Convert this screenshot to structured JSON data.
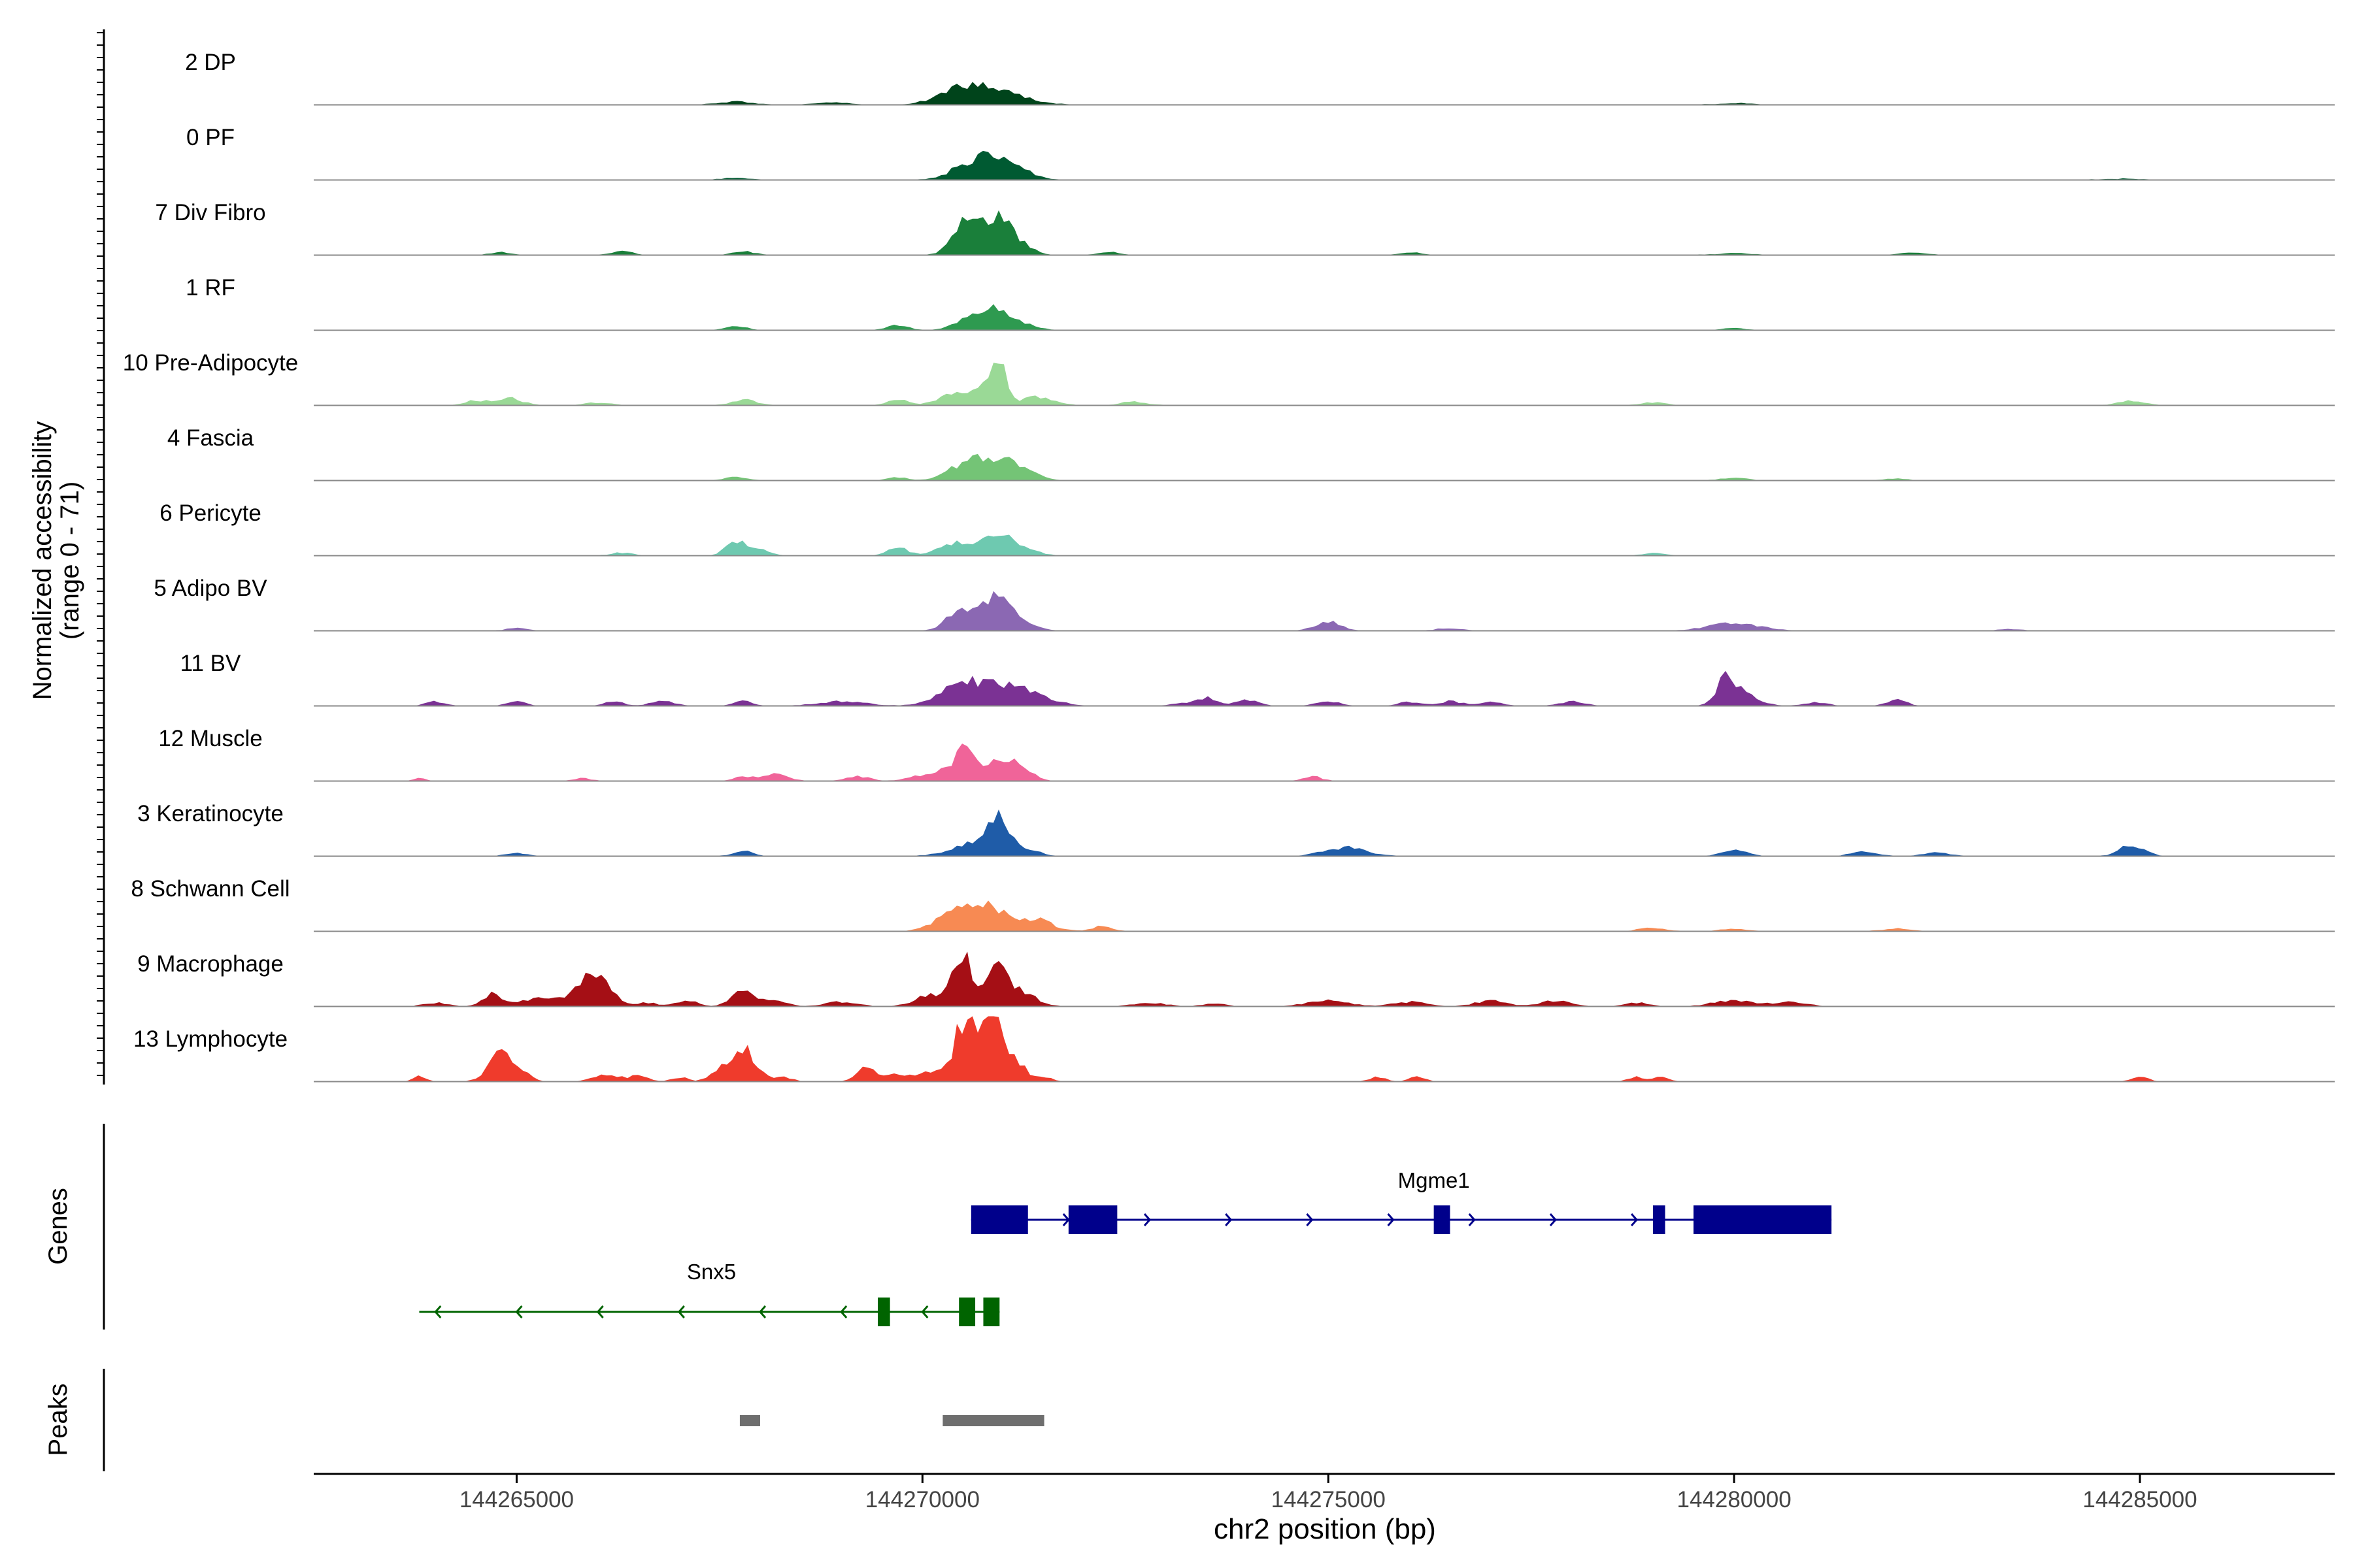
{
  "chart_data": {
    "type": "area",
    "title": "",
    "ylabel_line1": "Normalized accessibility",
    "ylabel_line2": "(range 0 - 71)",
    "y_range": [
      0,
      71
    ],
    "xlabel": "chr2 position (bp)",
    "xlim": [
      144262500,
      144287400
    ],
    "xticks": [
      "144265000",
      "144270000",
      "144275000",
      "144280000",
      "144285000"
    ],
    "xtick_values": [
      144265000,
      144270000,
      144275000,
      144280000,
      144285000
    ],
    "tracks": [
      {
        "name": "2 DP",
        "color": "#00441b",
        "noise_start": 144263700,
        "noise_end": 144286000,
        "noise": 0.4,
        "peaks": [
          [
            144270800,
            350,
            20
          ],
          [
            144270400,
            250,
            8
          ],
          [
            144267700,
            200,
            3
          ],
          [
            144268900,
            200,
            2
          ],
          [
            144280000,
            200,
            1.5
          ]
        ]
      },
      {
        "name": "0 PF",
        "color": "#005a32",
        "noise_start": 144263700,
        "noise_end": 144286000,
        "noise": 0.4,
        "peaks": [
          [
            144270900,
            250,
            25
          ],
          [
            144270500,
            200,
            10
          ],
          [
            144271300,
            150,
            3
          ],
          [
            144267700,
            150,
            2
          ],
          [
            144284800,
            200,
            1
          ]
        ]
      },
      {
        "name": "7 Div Fibro",
        "color": "#1a7f3a",
        "noise_start": 144263700,
        "noise_end": 144286000,
        "noise": 0.3,
        "peaks": [
          [
            144270900,
            180,
            37
          ],
          [
            144270500,
            150,
            22
          ],
          [
            144270600,
            150,
            18
          ],
          [
            144271200,
            150,
            10
          ],
          [
            144267800,
            120,
            4
          ],
          [
            144266300,
            120,
            4
          ],
          [
            144264800,
            120,
            3
          ],
          [
            144272300,
            120,
            3
          ],
          [
            144276000,
            120,
            3
          ],
          [
            144280000,
            200,
            2
          ],
          [
            144282200,
            150,
            3
          ]
        ]
      },
      {
        "name": "1 RF",
        "color": "#2e9a50",
        "noise_start": 144263700,
        "noise_end": 144286000,
        "noise": 0.3,
        "peaks": [
          [
            144270900,
            200,
            25
          ],
          [
            144270500,
            150,
            8
          ],
          [
            144269700,
            120,
            5
          ],
          [
            144267700,
            120,
            5
          ],
          [
            144271300,
            150,
            4
          ],
          [
            144280000,
            150,
            2
          ]
        ]
      },
      {
        "name": "10 Pre-Adipocyte",
        "color": "#9ad996",
        "noise_start": 144263700,
        "noise_end": 144286000,
        "noise": 0.3,
        "peaks": [
          [
            144270950,
            80,
            45
          ],
          [
            144270750,
            120,
            22
          ],
          [
            144270400,
            200,
            12
          ],
          [
            144271400,
            200,
            9
          ],
          [
            144264900,
            150,
            9
          ],
          [
            144264500,
            120,
            5
          ],
          [
            144267800,
            150,
            6
          ],
          [
            144269700,
            120,
            6
          ],
          [
            144272600,
            150,
            4
          ],
          [
            144279000,
            150,
            3
          ],
          [
            144284900,
            150,
            5
          ],
          [
            144266000,
            150,
            3
          ]
        ]
      },
      {
        "name": "4 Fascia",
        "color": "#74c476",
        "noise_start": 144263700,
        "noise_end": 144286000,
        "noise": 0.3,
        "peaks": [
          [
            144270900,
            250,
            24
          ],
          [
            144270500,
            200,
            14
          ],
          [
            144271300,
            150,
            5
          ],
          [
            144267700,
            120,
            4
          ],
          [
            144269700,
            120,
            3
          ],
          [
            144280000,
            150,
            3
          ],
          [
            144282000,
            120,
            2
          ]
        ]
      },
      {
        "name": "6 Pericyte",
        "color": "#6ec9b0",
        "noise_start": 144263700,
        "noise_end": 144286000,
        "noise": 0.3,
        "peaks": [
          [
            144270950,
            150,
            24
          ],
          [
            144270500,
            250,
            14
          ],
          [
            144271300,
            150,
            6
          ],
          [
            144267700,
            120,
            15
          ],
          [
            144268000,
            120,
            6
          ],
          [
            144269700,
            120,
            8
          ],
          [
            144279000,
            120,
            3
          ],
          [
            144266300,
            120,
            3
          ]
        ]
      },
      {
        "name": "5 Adipo BV",
        "color": "#8b68b3",
        "noise_start": 144263700,
        "noise_end": 144286000,
        "noise": 0.25,
        "peaks": [
          [
            144270950,
            150,
            38
          ],
          [
            144270600,
            200,
            18
          ],
          [
            144270400,
            150,
            10
          ],
          [
            144271300,
            150,
            6
          ],
          [
            144275000,
            150,
            10
          ],
          [
            144280000,
            300,
            8
          ],
          [
            144265000,
            120,
            3
          ],
          [
            144276500,
            150,
            3
          ],
          [
            144283400,
            120,
            2
          ]
        ]
      },
      {
        "name": "11 BV",
        "color": "#7b3294",
        "noise_start": 144263800,
        "noise_end": 144285000,
        "noise": 0,
        "peaks": [
          [
            144270800,
            400,
            20
          ],
          [
            144270400,
            200,
            15
          ],
          [
            144271300,
            300,
            8
          ],
          [
            144279900,
            120,
            25
          ],
          [
            144280100,
            200,
            12
          ],
          [
            144273500,
            120,
            9
          ],
          [
            144265000,
            120,
            5
          ],
          [
            144264000,
            120,
            5
          ],
          [
            144266200,
            120,
            5
          ],
          [
            144266800,
            150,
            5
          ],
          [
            144267800,
            120,
            5
          ],
          [
            144269000,
            300,
            5
          ],
          [
            144274000,
            150,
            6
          ],
          [
            144275000,
            150,
            5
          ],
          [
            144276500,
            150,
            5
          ],
          [
            144278000,
            150,
            5
          ],
          [
            144281000,
            150,
            4
          ],
          [
            144282000,
            120,
            7
          ],
          [
            144276000,
            150,
            4
          ],
          [
            144277000,
            150,
            4
          ],
          [
            144273200,
            150,
            3
          ]
        ]
      },
      {
        "name": "12 Muscle",
        "color": "#f06499",
        "noise_start": 144263800,
        "noise_end": 144275000,
        "noise": 0,
        "peaks": [
          [
            144270500,
            120,
            30
          ],
          [
            144270900,
            200,
            20
          ],
          [
            144271200,
            150,
            12
          ],
          [
            144270200,
            150,
            10
          ],
          [
            144268200,
            150,
            8
          ],
          [
            144267800,
            120,
            5
          ],
          [
            144269200,
            150,
            5
          ],
          [
            144269900,
            150,
            4
          ],
          [
            144274800,
            120,
            5
          ],
          [
            144265800,
            120,
            3
          ],
          [
            144263800,
            80,
            3
          ]
        ]
      },
      {
        "name": "3 Keratinocyte",
        "color": "#1f5ca8",
        "noise_start": 144263700,
        "noise_end": 144286000,
        "noise": 0.3,
        "peaks": [
          [
            144270950,
            150,
            35
          ],
          [
            144270600,
            250,
            14
          ],
          [
            144271300,
            150,
            6
          ],
          [
            144275200,
            250,
            9
          ],
          [
            144280000,
            150,
            6
          ],
          [
            144284900,
            150,
            12
          ],
          [
            144267800,
            120,
            5
          ],
          [
            144265000,
            120,
            3
          ],
          [
            144281600,
            150,
            5
          ],
          [
            144282500,
            150,
            4
          ]
        ]
      },
      {
        "name": "8 Schwann Cell",
        "color": "#f78a53",
        "noise_start": 144263700,
        "noise_end": 144286000,
        "noise": 0.3,
        "peaks": [
          [
            144270500,
            200,
            30
          ],
          [
            144270900,
            200,
            22
          ],
          [
            144271400,
            200,
            12
          ],
          [
            144272200,
            120,
            5
          ],
          [
            144270100,
            120,
            5
          ],
          [
            144279000,
            150,
            4
          ],
          [
            144280000,
            150,
            3
          ],
          [
            144282000,
            150,
            3
          ]
        ]
      },
      {
        "name": "9 Macrophage",
        "color": "#a50f15",
        "noise_start": 144263800,
        "noise_end": 144281800,
        "noise": 0,
        "peaks": [
          [
            144270500,
            120,
            50
          ],
          [
            144270900,
            150,
            35
          ],
          [
            144271200,
            200,
            15
          ],
          [
            144270100,
            200,
            12
          ],
          [
            144266000,
            150,
            35
          ],
          [
            144265700,
            200,
            12
          ],
          [
            144267800,
            150,
            16
          ],
          [
            144264700,
            120,
            14
          ],
          [
            144265200,
            200,
            8
          ],
          [
            144267100,
            120,
            7
          ],
          [
            144268200,
            150,
            5
          ],
          [
            144269000,
            200,
            5
          ],
          [
            144275000,
            250,
            7
          ],
          [
            144276000,
            200,
            5
          ],
          [
            144277000,
            200,
            6
          ],
          [
            144277800,
            200,
            6
          ],
          [
            144280000,
            250,
            7
          ],
          [
            144280700,
            200,
            5
          ],
          [
            144278800,
            150,
            4
          ],
          [
            144264000,
            150,
            4
          ],
          [
            144266600,
            150,
            4
          ],
          [
            144272800,
            200,
            4
          ],
          [
            144273600,
            150,
            3
          ]
        ]
      },
      {
        "name": "13 Lymphocyte",
        "color": "#ef3b2c",
        "noise_start": 144263800,
        "noise_end": 144285000,
        "noise": 0,
        "peaks": [
          [
            144270500,
            120,
            55
          ],
          [
            144270850,
            100,
            55
          ],
          [
            144270700,
            150,
            35
          ],
          [
            144271100,
            150,
            25
          ],
          [
            144264800,
            150,
            30
          ],
          [
            144267800,
            150,
            35
          ],
          [
            144267500,
            120,
            12
          ],
          [
            144269300,
            120,
            15
          ],
          [
            144266100,
            150,
            8
          ],
          [
            144266500,
            120,
            6
          ],
          [
            144269700,
            120,
            8
          ],
          [
            144270100,
            150,
            10
          ],
          [
            144263800,
            80,
            6
          ],
          [
            144265100,
            100,
            6
          ],
          [
            144267000,
            100,
            5
          ],
          [
            144268300,
            100,
            5
          ],
          [
            144271500,
            100,
            5
          ],
          [
            144275600,
            100,
            5
          ],
          [
            144276100,
            100,
            5
          ],
          [
            144278800,
            100,
            5
          ],
          [
            144279100,
            100,
            5
          ],
          [
            144285000,
            100,
            6
          ]
        ]
      }
    ],
    "genes_label": "Genes",
    "genes": [
      {
        "name": "Mgme1",
        "color": "#00008b",
        "strand": "+",
        "start": 144270600,
        "end": 144281200,
        "exons": [
          [
            144270600,
            144271300
          ],
          [
            144271800,
            144272400
          ],
          [
            144276300,
            144276500
          ],
          [
            144279000,
            144279150
          ],
          [
            144279500,
            144281200
          ]
        ]
      },
      {
        "name": "Snx5",
        "color": "#006400",
        "strand": "-",
        "start": 144263800,
        "end": 144270950,
        "exons": [
          [
            144269450,
            144269600
          ],
          [
            144270450,
            144270650
          ],
          [
            144270750,
            144270950
          ]
        ]
      }
    ],
    "peaks_label": "Peaks",
    "peaks_color": "#6e6e6e",
    "peak_ranges": [
      [
        144267750,
        144268000
      ],
      [
        144270250,
        144271500
      ]
    ]
  }
}
